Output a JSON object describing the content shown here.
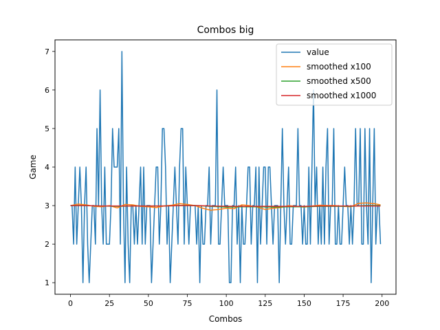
{
  "chart_data": {
    "type": "line",
    "title": "Combos big",
    "xlabel": "Combos",
    "ylabel": "Game",
    "xlim": [
      -9.95,
      208.95
    ],
    "ylim": [
      0.7,
      7.3
    ],
    "xticks": [
      0,
      25,
      50,
      75,
      100,
      125,
      150,
      175,
      200
    ],
    "yticks": [
      1,
      2,
      3,
      4,
      5,
      6,
      7
    ],
    "grid": false,
    "legend_position": "top-right",
    "series": [
      {
        "name": "value",
        "color": "#1f77b4",
        "x": [
          0,
          1,
          2,
          3,
          4,
          5,
          6,
          7,
          8,
          9,
          10,
          11,
          12,
          13,
          14,
          15,
          16,
          17,
          18,
          19,
          20,
          21,
          22,
          23,
          24,
          25,
          26,
          27,
          28,
          29,
          30,
          31,
          32,
          33,
          34,
          35,
          36,
          37,
          38,
          39,
          40,
          41,
          42,
          43,
          44,
          45,
          46,
          47,
          48,
          49,
          50,
          51,
          52,
          53,
          54,
          55,
          56,
          57,
          58,
          59,
          60,
          61,
          62,
          63,
          64,
          65,
          66,
          67,
          68,
          69,
          70,
          71,
          72,
          73,
          74,
          75,
          76,
          77,
          78,
          79,
          80,
          81,
          82,
          83,
          84,
          85,
          86,
          87,
          88,
          89,
          90,
          91,
          92,
          93,
          94,
          95,
          96,
          97,
          98,
          99,
          100,
          101,
          102,
          103,
          104,
          105,
          106,
          107,
          108,
          109,
          110,
          111,
          112,
          113,
          114,
          115,
          116,
          117,
          118,
          119,
          120,
          121,
          122,
          123,
          124,
          125,
          126,
          127,
          128,
          129,
          130,
          131,
          132,
          133,
          134,
          135,
          136,
          137,
          138,
          139,
          140,
          141,
          142,
          143,
          144,
          145,
          146,
          147,
          148,
          149,
          150,
          151,
          152,
          153,
          154,
          155,
          156,
          157,
          158,
          159,
          160,
          161,
          162,
          163,
          164,
          165,
          166,
          167,
          168,
          169,
          170,
          171,
          172,
          173,
          174,
          175,
          176,
          177,
          178,
          179,
          180,
          181,
          182,
          183,
          184,
          185,
          186,
          187,
          188,
          189,
          190,
          191,
          192,
          193,
          194,
          195,
          196,
          197,
          198,
          199
        ],
        "y": [
          3,
          3,
          2,
          4,
          2,
          3,
          4,
          3,
          1,
          3,
          4,
          2,
          1,
          2,
          3,
          3,
          2,
          5,
          3,
          6,
          3,
          2,
          4,
          2,
          2,
          2,
          3,
          5,
          4,
          4,
          4,
          5,
          2,
          7,
          3,
          1,
          4,
          2,
          1,
          3,
          3,
          2,
          3,
          2,
          3,
          4,
          2,
          4,
          2,
          3,
          3,
          3,
          1,
          2,
          3,
          4,
          4,
          2,
          3,
          5,
          5,
          4,
          2,
          3,
          1,
          2,
          3,
          4,
          3,
          2,
          4,
          5,
          5,
          2,
          4,
          3,
          2,
          3,
          3,
          3,
          3,
          2,
          3,
          1,
          3,
          2,
          2,
          3,
          3,
          4,
          2,
          3,
          3,
          3,
          6,
          2,
          2,
          3,
          4,
          3,
          3,
          3,
          1,
          1,
          3,
          3,
          4,
          2,
          3,
          1,
          3,
          2,
          2,
          3,
          4,
          4,
          2,
          3,
          3,
          4,
          1,
          4,
          2,
          3,
          4,
          4,
          2,
          4,
          4,
          3,
          2,
          3,
          3,
          3,
          1,
          3,
          5,
          3,
          2,
          3,
          4,
          2,
          2,
          3,
          3,
          3,
          5,
          3,
          3,
          2,
          3,
          2,
          2,
          4,
          2,
          4,
          6,
          3,
          4,
          2,
          3,
          2,
          4,
          2,
          4,
          5,
          2,
          3,
          3,
          5,
          2,
          2,
          3,
          2,
          2,
          3,
          4,
          3,
          3,
          2,
          3,
          2,
          3,
          5,
          3,
          3,
          5,
          2,
          2,
          5,
          3,
          2,
          5,
          1,
          3,
          5,
          2,
          3,
          3,
          2
        ]
      },
      {
        "name": "smoothed x100",
        "color": "#ff7f0e",
        "x": [
          0,
          5,
          10,
          15,
          20,
          25,
          30,
          35,
          40,
          45,
          50,
          55,
          60,
          65,
          70,
          75,
          80,
          85,
          90,
          95,
          100,
          105,
          110,
          115,
          120,
          125,
          130,
          135,
          140,
          145,
          150,
          155,
          160,
          165,
          170,
          175,
          180,
          185,
          190,
          195,
          199
        ],
        "y": [
          3.0,
          3.04,
          3.02,
          2.98,
          2.97,
          3.0,
          2.94,
          3.03,
          3.02,
          2.98,
          2.97,
          2.95,
          2.99,
          3.01,
          3.05,
          3.03,
          3.0,
          2.93,
          2.88,
          2.9,
          2.93,
          2.92,
          3.02,
          3.0,
          2.96,
          2.9,
          2.93,
          2.95,
          3.0,
          2.98,
          2.96,
          2.99,
          3.01,
          3.0,
          3.0,
          2.98,
          2.97,
          3.06,
          3.07,
          3.05,
          3.02
        ]
      },
      {
        "name": "smoothed x500",
        "color": "#2ca02c",
        "x": [
          0,
          10,
          20,
          30,
          40,
          50,
          60,
          70,
          80,
          90,
          100,
          110,
          120,
          130,
          140,
          150,
          160,
          170,
          180,
          190,
          199
        ],
        "y": [
          3.0,
          3.0,
          2.99,
          2.98,
          2.99,
          2.99,
          2.99,
          3.0,
          3.0,
          2.98,
          2.96,
          2.97,
          2.97,
          2.96,
          2.97,
          2.97,
          2.98,
          2.98,
          2.98,
          3.0,
          3.0
        ]
      },
      {
        "name": "smoothed x1000",
        "color": "#d62728",
        "x": [
          0,
          10,
          20,
          30,
          40,
          50,
          60,
          70,
          80,
          90,
          100,
          110,
          120,
          130,
          140,
          150,
          160,
          170,
          180,
          190,
          199
        ],
        "y": [
          3.0,
          3.0,
          2.99,
          2.99,
          2.99,
          2.99,
          2.99,
          3.0,
          3.0,
          2.99,
          2.98,
          2.98,
          2.98,
          2.98,
          2.98,
          2.98,
          2.99,
          2.99,
          2.99,
          2.99,
          2.99
        ]
      }
    ]
  }
}
